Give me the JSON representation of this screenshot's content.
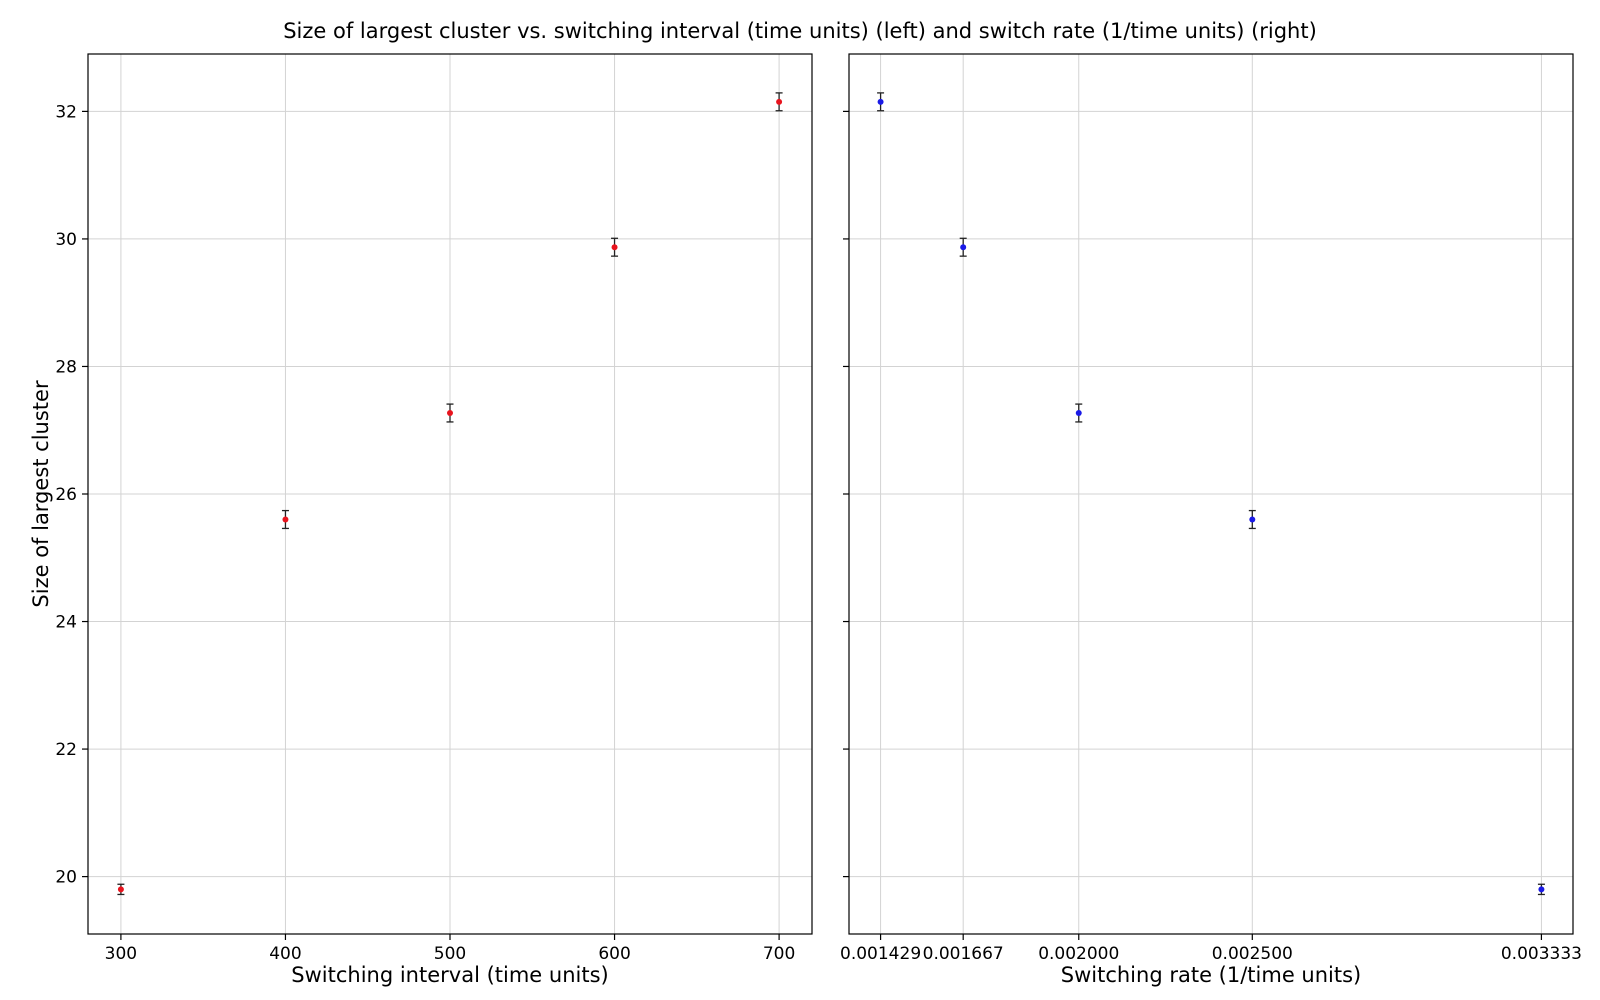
{
  "figure": {
    "suptitle": "Size of largest cluster vs. switching interval (time units) (left) and switch rate (1/time units) (right)"
  },
  "chart_data": [
    {
      "type": "scatter",
      "error_bars": true,
      "xlabel": "Switching interval (time units)",
      "ylabel": "Size of largest cluster",
      "x": [
        300,
        400,
        500,
        600,
        700
      ],
      "y": [
        19.8,
        25.6,
        27.27,
        29.87,
        32.15
      ],
      "yerr": [
        0.08,
        0.14,
        0.14,
        0.14,
        0.14
      ],
      "xlim": [
        280,
        720
      ],
      "ylim": [
        19.1,
        32.9
      ],
      "xticks": [
        300,
        400,
        500,
        600,
        700
      ],
      "xtick_labels": [
        "300",
        "400",
        "500",
        "600",
        "700"
      ],
      "yticks": [
        20,
        22,
        24,
        26,
        28,
        30,
        32
      ],
      "ytick_labels": [
        "20",
        "22",
        "24",
        "26",
        "28",
        "30",
        "32"
      ],
      "marker_color": "#e8141e",
      "grid": true
    },
    {
      "type": "scatter",
      "error_bars": true,
      "xlabel": "Switching rate (1/time units)",
      "ylabel": "",
      "x": [
        0.001429,
        0.001667,
        0.002,
        0.0025,
        0.003333
      ],
      "y": [
        32.15,
        29.87,
        27.27,
        25.6,
        19.8
      ],
      "yerr": [
        0.14,
        0.14,
        0.14,
        0.14,
        0.08
      ],
      "xlim": [
        0.001338,
        0.003424
      ],
      "ylim": [
        19.1,
        32.9
      ],
      "xticks": [
        0.001429,
        0.001667,
        0.002,
        0.0025,
        0.003333
      ],
      "xtick_labels": [
        "0.001429",
        "0.001667",
        "0.002000",
        "0.002500",
        "0.003333"
      ],
      "yticks": [
        20,
        22,
        24,
        26,
        28,
        30,
        32
      ],
      "ytick_labels": [],
      "marker_color": "#1a1ae6",
      "grid": true
    }
  ]
}
